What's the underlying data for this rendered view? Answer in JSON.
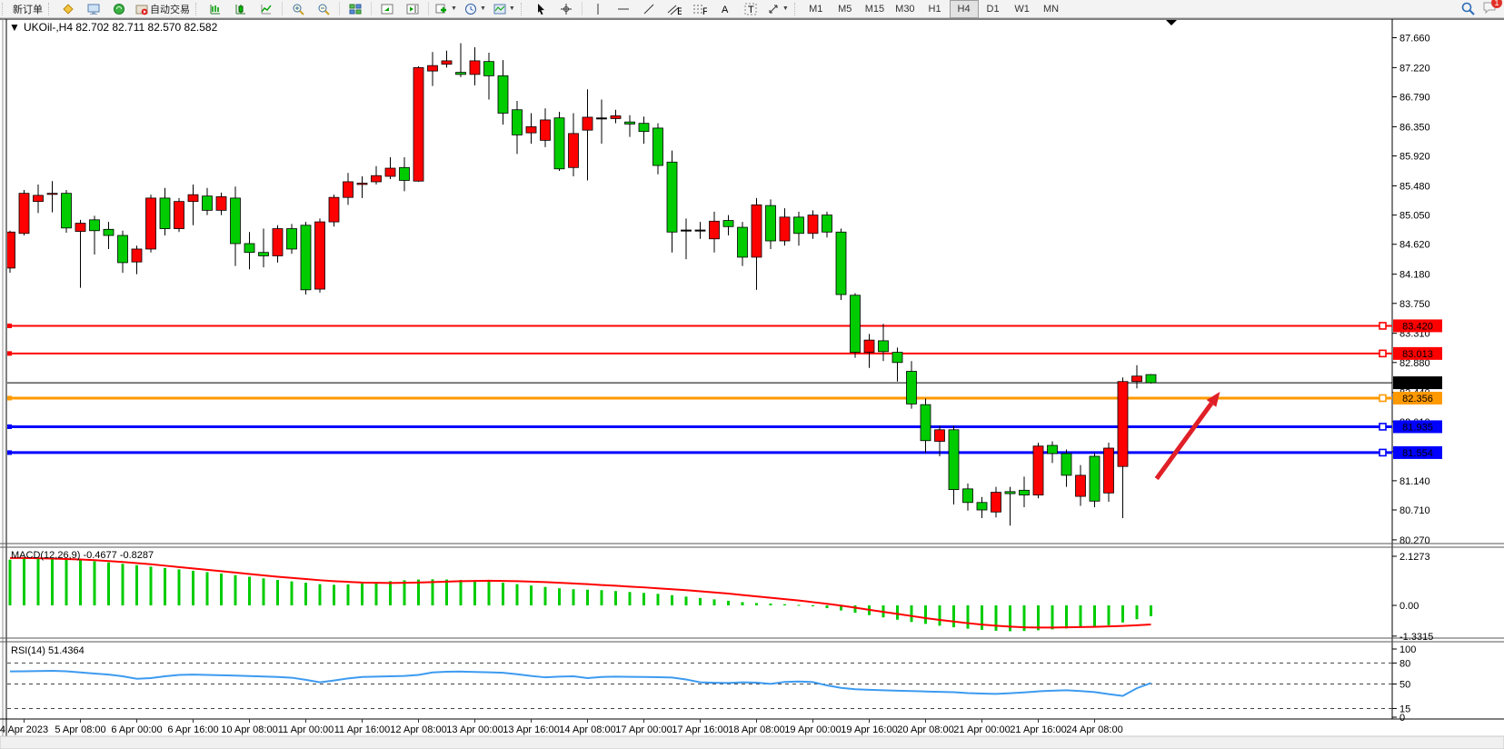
{
  "toolbar": {
    "new_order_label": "新订单",
    "autotrading_label": "自动交易",
    "timeframes": [
      "M1",
      "M5",
      "M15",
      "M30",
      "H1",
      "H4",
      "D1",
      "W1",
      "MN"
    ],
    "active_timeframe": "H4",
    "notification_badge": "1"
  },
  "chart": {
    "title_line": "UKOil-,H4  82.702 82.711 82.570 82.582",
    "macd_label": "MACD(12,26,9) -0.4677 -0.8287",
    "rsi_label": "RSI(14) 51.4364"
  },
  "chart_data": {
    "type": "candlestick",
    "symbol": "UKOil-",
    "period": "H4",
    "current_ohlc": {
      "open": "82.702",
      "high": "82.711",
      "low": "82.570",
      "close": "82.582"
    },
    "up_color": "#ff0000",
    "down_color": "#00cc00",
    "y_axis_ticks": [
      "87.660",
      "87.220",
      "86.790",
      "86.350",
      "85.920",
      "85.480",
      "85.050",
      "84.620",
      "84.180",
      "83.750",
      "83.310",
      "82.880",
      "82.440",
      "82.010",
      "81.570",
      "81.140",
      "80.710",
      "80.270"
    ],
    "x_axis_labels": [
      "4 Apr 2023",
      "5 Apr 08:00",
      "6 Apr 00:00",
      "6 Apr 16:00",
      "10 Apr 08:00",
      "11 Apr 00:00",
      "11 Apr 16:00",
      "12 Apr 08:00",
      "13 Apr 00:00",
      "13 Apr 16:00",
      "14 Apr 08:00",
      "17 Apr 00:00",
      "17 Apr 16:00",
      "18 Apr 08:00",
      "19 Apr 00:00",
      "19 Apr 16:00",
      "20 Apr 08:00",
      "21 Apr 00:00",
      "21 Apr 16:00",
      "24 Apr 08:00"
    ],
    "candles": [
      [
        84.27,
        84.82,
        84.2,
        84.8
      ],
      [
        84.78,
        85.42,
        84.75,
        85.37
      ],
      [
        85.25,
        85.5,
        85.08,
        85.34
      ],
      [
        85.36,
        85.55,
        85.09,
        85.37
      ],
      [
        85.37,
        85.42,
        84.79,
        84.86
      ],
      [
        84.81,
        84.98,
        83.98,
        84.93
      ],
      [
        84.98,
        85.04,
        84.47,
        84.82
      ],
      [
        84.84,
        84.95,
        84.55,
        84.75
      ],
      [
        84.75,
        84.82,
        84.2,
        84.35
      ],
      [
        84.36,
        84.6,
        84.18,
        84.55
      ],
      [
        84.55,
        85.35,
        84.5,
        85.3
      ],
      [
        85.3,
        85.45,
        84.75,
        84.85
      ],
      [
        84.85,
        85.3,
        84.8,
        85.25
      ],
      [
        85.25,
        85.5,
        84.9,
        85.35
      ],
      [
        85.33,
        85.45,
        85.05,
        85.12
      ],
      [
        85.12,
        85.38,
        85.05,
        85.32
      ],
      [
        85.3,
        85.47,
        84.3,
        84.63
      ],
      [
        84.63,
        84.8,
        84.25,
        84.5
      ],
      [
        84.5,
        84.85,
        84.28,
        84.45
      ],
      [
        84.45,
        84.9,
        84.35,
        84.85
      ],
      [
        84.85,
        84.92,
        84.48,
        84.55
      ],
      [
        84.9,
        84.95,
        83.88,
        83.95
      ],
      [
        83.96,
        85.0,
        83.91,
        84.95
      ],
      [
        84.95,
        85.35,
        84.88,
        85.31
      ],
      [
        85.31,
        85.67,
        85.2,
        85.54
      ],
      [
        85.5,
        85.62,
        85.3,
        85.52
      ],
      [
        85.54,
        85.77,
        85.5,
        85.63
      ],
      [
        85.62,
        85.9,
        85.58,
        85.74
      ],
      [
        85.75,
        85.9,
        85.4,
        85.56
      ],
      [
        85.55,
        87.24,
        85.54,
        87.22
      ],
      [
        87.17,
        87.45,
        86.95,
        87.25
      ],
      [
        87.27,
        87.47,
        87.22,
        87.32
      ],
      [
        87.15,
        87.58,
        87.08,
        87.12
      ],
      [
        87.12,
        87.52,
        86.96,
        87.32
      ],
      [
        87.31,
        87.44,
        86.75,
        87.1
      ],
      [
        87.1,
        87.33,
        86.38,
        86.55
      ],
      [
        86.6,
        86.73,
        85.95,
        86.23
      ],
      [
        86.26,
        86.55,
        86.1,
        86.35
      ],
      [
        86.15,
        86.62,
        86.05,
        86.45
      ],
      [
        86.48,
        86.57,
        85.7,
        85.73
      ],
      [
        85.75,
        86.55,
        85.62,
        86.25
      ],
      [
        86.3,
        86.9,
        85.56,
        86.49
      ],
      [
        86.48,
        86.75,
        86.1,
        86.48
      ],
      [
        86.47,
        86.6,
        86.4,
        86.51
      ],
      [
        86.42,
        86.52,
        86.2,
        86.39
      ],
      [
        86.4,
        86.5,
        86.1,
        86.28
      ],
      [
        86.33,
        86.4,
        85.65,
        85.78
      ],
      [
        85.83,
        86.0,
        84.5,
        84.8
      ],
      [
        84.83,
        85.0,
        84.4,
        84.83
      ],
      [
        84.83,
        84.95,
        84.7,
        84.83
      ],
      [
        84.7,
        85.1,
        84.5,
        84.96
      ],
      [
        84.97,
        85.05,
        84.75,
        84.88
      ],
      [
        84.87,
        84.95,
        84.3,
        84.43
      ],
      [
        84.43,
        85.3,
        83.95,
        85.2
      ],
      [
        85.19,
        85.28,
        84.55,
        84.67
      ],
      [
        84.67,
        85.15,
        84.6,
        85.02
      ],
      [
        85.02,
        85.1,
        84.6,
        84.78
      ],
      [
        84.78,
        85.12,
        84.7,
        85.05
      ],
      [
        85.05,
        85.1,
        84.72,
        84.8
      ],
      [
        84.8,
        84.85,
        83.8,
        83.88
      ],
      [
        83.87,
        83.9,
        82.95,
        83.03
      ],
      [
        83.03,
        83.3,
        82.8,
        83.21
      ],
      [
        83.2,
        83.45,
        82.9,
        83.04
      ],
      [
        83.03,
        83.1,
        82.6,
        82.88
      ],
      [
        82.75,
        82.9,
        82.2,
        82.27
      ],
      [
        82.26,
        82.35,
        81.55,
        81.73
      ],
      [
        81.72,
        81.95,
        81.5,
        81.89
      ],
      [
        81.89,
        81.95,
        80.79,
        81.01
      ],
      [
        81.02,
        81.1,
        80.7,
        80.82
      ],
      [
        80.82,
        80.9,
        80.59,
        80.71
      ],
      [
        80.68,
        81.05,
        80.6,
        80.97
      ],
      [
        80.98,
        81.05,
        80.48,
        80.95
      ],
      [
        81.0,
        81.2,
        80.75,
        80.93
      ],
      [
        80.93,
        81.7,
        80.88,
        81.65
      ],
      [
        81.66,
        81.72,
        81.4,
        81.54
      ],
      [
        81.54,
        81.6,
        81.05,
        81.22
      ],
      [
        80.91,
        81.37,
        80.77,
        81.22
      ],
      [
        81.5,
        81.55,
        80.75,
        80.84
      ],
      [
        80.96,
        81.7,
        80.83,
        81.62
      ],
      [
        81.35,
        82.66,
        80.59,
        82.6
      ],
      [
        82.6,
        82.84,
        82.5,
        82.68
      ],
      [
        82.702,
        82.711,
        82.57,
        82.582
      ]
    ],
    "hlines": [
      {
        "price": 83.42,
        "label": "83.420",
        "color": "#ff0000",
        "width": 2
      },
      {
        "price": 83.013,
        "label": "83.013",
        "color": "#ff0000",
        "width": 2
      },
      {
        "price": 82.356,
        "label": "82.356",
        "color": "#ff9900",
        "width": 3
      },
      {
        "price": 81.935,
        "label": "81.935",
        "color": "#0000ff",
        "width": 3
      },
      {
        "price": 81.554,
        "label": "81.554",
        "color": "#0000ff",
        "width": 3
      }
    ],
    "price_line": {
      "price": 82.582,
      "label": "82.582",
      "color": "#000000"
    },
    "arrow": {
      "from_bar": 81.4,
      "from_price": 81.17,
      "to_bar": 85.9,
      "to_price": 82.45,
      "color": "#e01f26"
    },
    "macd": {
      "name": "MACD(12,26,9)",
      "current_values": "-0.4677 -0.8287",
      "histogram_color": "#00cc00",
      "signal_color": "#ff0000",
      "scale": [
        {
          "label": "2.1273",
          "value": 2.1273
        },
        {
          "label": "0.00",
          "value": 0
        },
        {
          "label": "-1.3315",
          "value": -1.3315
        }
      ],
      "histogram": [
        1.98,
        2.02,
        2.05,
        2.03,
        2.0,
        1.96,
        1.91,
        1.86,
        1.8,
        1.74,
        1.68,
        1.62,
        1.56,
        1.5,
        1.44,
        1.38,
        1.31,
        1.24,
        1.17,
        1.1,
        1.04,
        0.98,
        0.92,
        0.89,
        0.91,
        0.95,
        1.0,
        1.05,
        1.09,
        1.12,
        1.13,
        1.12,
        1.1,
        1.07,
        1.03,
        0.98,
        0.92,
        0.86,
        0.8,
        0.74,
        0.7,
        0.68,
        0.66,
        0.62,
        0.58,
        0.54,
        0.5,
        0.44,
        0.38,
        0.32,
        0.26,
        0.2,
        0.14,
        0.1,
        0.08,
        0.05,
        0.02,
        -0.04,
        -0.12,
        -0.22,
        -0.32,
        -0.42,
        -0.52,
        -0.62,
        -0.72,
        -0.8,
        -0.88,
        -0.95,
        -1.01,
        -1.06,
        -1.1,
        -1.12,
        -1.11,
        -1.08,
        -1.04,
        -1.0,
        -0.96,
        -0.92,
        -0.86,
        -0.74,
        -0.6,
        -0.4677
      ],
      "signal": [
        2.05,
        2.05,
        2.04,
        2.03,
        2.01,
        1.99,
        1.96,
        1.92,
        1.88,
        1.83,
        1.78,
        1.72,
        1.66,
        1.6,
        1.54,
        1.48,
        1.42,
        1.36,
        1.3,
        1.24,
        1.19,
        1.14,
        1.09,
        1.05,
        1.02,
        0.99,
        0.98,
        0.97,
        0.98,
        0.99,
        1.01,
        1.03,
        1.05,
        1.06,
        1.07,
        1.06,
        1.05,
        1.03,
        1.01,
        0.98,
        0.95,
        0.92,
        0.88,
        0.85,
        0.81,
        0.78,
        0.74,
        0.7,
        0.66,
        0.61,
        0.56,
        0.51,
        0.45,
        0.39,
        0.33,
        0.27,
        0.21,
        0.14,
        0.07,
        -0.01,
        -0.1,
        -0.19,
        -0.28,
        -0.37,
        -0.46,
        -0.55,
        -0.63,
        -0.7,
        -0.77,
        -0.83,
        -0.88,
        -0.92,
        -0.95,
        -0.96,
        -0.96,
        -0.95,
        -0.94,
        -0.93,
        -0.91,
        -0.89,
        -0.86,
        -0.8287
      ]
    },
    "rsi": {
      "name": "RSI(14)",
      "current_value": "51.4364",
      "color": "#3d9bf0",
      "levels": [
        80,
        50,
        15
      ],
      "scale": [
        {
          "label": "100",
          "value": 100
        },
        {
          "label": "80",
          "value": 80
        },
        {
          "label": "50",
          "value": 50
        },
        {
          "label": "15",
          "value": 15
        },
        {
          "label": "0",
          "value": 0
        }
      ],
      "values": [
        68.0,
        68.2,
        68.5,
        68.8,
        68.2,
        66.5,
        65.0,
        63.5,
        61.0,
        57.5,
        58.5,
        61.0,
        63.0,
        63.5,
        63.0,
        62.5,
        62.0,
        61.3,
        60.7,
        60.0,
        59.0,
        56.0,
        52.5,
        55.0,
        58.0,
        60.0,
        60.5,
        61.0,
        61.5,
        63.0,
        66.5,
        67.5,
        67.8,
        67.2,
        66.8,
        66.0,
        64.0,
        61.5,
        59.5,
        60.5,
        61.0,
        58.5,
        60.0,
        60.5,
        60.2,
        60.0,
        59.8,
        59.3,
        56.5,
        52.5,
        51.8,
        51.5,
        52.5,
        52.0,
        50.2,
        53.0,
        53.5,
        52.8,
        48.0,
        44.5,
        42.5,
        41.8,
        41.0,
        40.5,
        40.0,
        39.3,
        38.8,
        38.3,
        37.0,
        36.3,
        35.8,
        36.8,
        38.0,
        39.5,
        40.5,
        41.0,
        40.0,
        38.5,
        35.5,
        33.0,
        44.0,
        51.44
      ]
    }
  }
}
